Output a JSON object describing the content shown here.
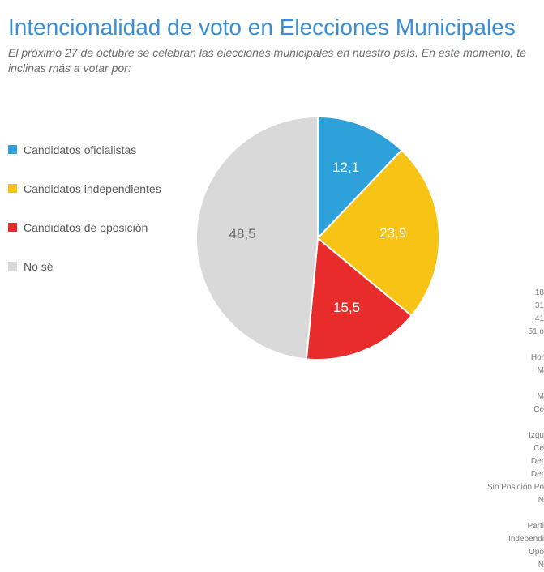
{
  "title": {
    "text": "Intencionalidad de voto en Elecciones Municipales",
    "color": "#3b8fd6",
    "fontsize": 28
  },
  "subtitle": {
    "text": "El próximo 27 de octubre se celebran las elecciones municipales en nuestro país. En este momento, te inclinas más a votar por:",
    "color": "#6d6d6d",
    "fontsize": 14
  },
  "chart": {
    "type": "pie",
    "background_color": "#ffffff",
    "label_color": "#ffffff",
    "label_color_dark": "#6d6d6d",
    "label_fontsize": 17,
    "radius": 150,
    "slices": [
      {
        "label": "Candidatos oficialistas",
        "value": 12.1,
        "display": "12,1",
        "color": "#2ea1db"
      },
      {
        "label": "Candidatos independientes",
        "value": 23.9,
        "display": "23,9",
        "color": "#f7c315"
      },
      {
        "label": "Candidatos de oposición",
        "value": 15.5,
        "display": "15,5",
        "color": "#e82c2c"
      },
      {
        "label": "No sé",
        "value": 48.5,
        "display": "48,5",
        "color": "#d9d9d9"
      }
    ],
    "legend": {
      "fontsize": 14,
      "text_color": "#5a5a5a",
      "swatch_size": 11
    }
  },
  "side_fragments": [
    "18",
    "31",
    "41",
    "51 o",
    "",
    "Hor",
    "M",
    "",
    "M",
    "Ce",
    "",
    "Izqu",
    "Ce",
    "Der",
    "Der",
    "Sin Posición Po",
    "N",
    "",
    "Parti",
    "Independi",
    "Opo",
    "N"
  ]
}
